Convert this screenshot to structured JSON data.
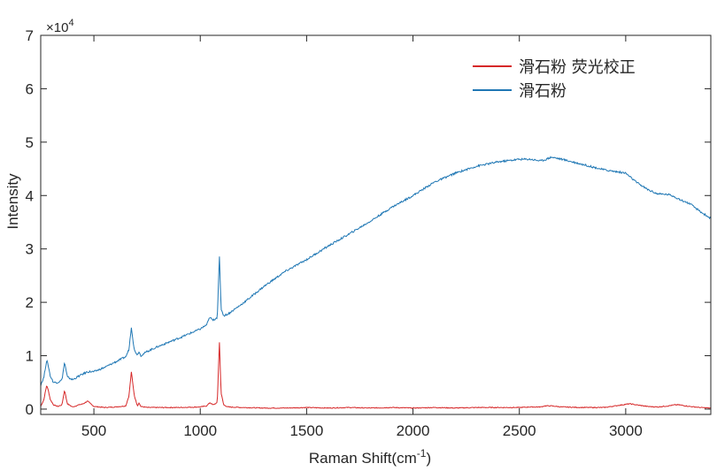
{
  "chart_data": {
    "type": "line",
    "title": "",
    "xlabel": "Raman Shift(cm",
    "xlabel_sup": "-1",
    "xlabel_suffix": ")",
    "ylabel": "Intensity",
    "y_multiplier": "×10",
    "y_multiplier_exp": "4",
    "xlim": [
      250,
      3400
    ],
    "ylim": [
      -0.1,
      7
    ],
    "x_ticks": [
      500,
      1000,
      1500,
      2000,
      2500,
      3000
    ],
    "x_tick_labels": [
      "500",
      "1000",
      "1500",
      "2000",
      "2500",
      "3000"
    ],
    "y_ticks": [
      0,
      1,
      2,
      3,
      4,
      5,
      6,
      7
    ],
    "y_tick_labels": [
      "0",
      "1",
      "2",
      "3",
      "4",
      "5",
      "6",
      "7"
    ],
    "grid": false,
    "legend_position": "top-right",
    "series": [
      {
        "name": "滑石粉 荧光校正",
        "color": "#d62728",
        "x": [
          250,
          265,
          278,
          285,
          295,
          310,
          330,
          350,
          362,
          375,
          400,
          430,
          450,
          470,
          500,
          550,
          600,
          650,
          665,
          676,
          690,
          705,
          712,
          720,
          750,
          800,
          900,
          1000,
          1030,
          1045,
          1060,
          1080,
          1090,
          1098,
          1110,
          1130,
          1200,
          1300,
          1400,
          1500,
          1600,
          1700,
          1800,
          1900,
          2000,
          2100,
          2200,
          2300,
          2400,
          2500,
          2550,
          2600,
          2620,
          2650,
          2700,
          2800,
          2900,
          3000,
          3020,
          3050,
          3100,
          3150,
          3200,
          3230,
          3250,
          3300,
          3350,
          3400
        ],
        "y": [
          0.05,
          0.18,
          0.45,
          0.36,
          0.18,
          0.08,
          0.05,
          0.08,
          0.36,
          0.1,
          0.04,
          0.08,
          0.1,
          0.15,
          0.05,
          0.03,
          0.04,
          0.06,
          0.25,
          0.7,
          0.25,
          0.06,
          0.12,
          0.05,
          0.03,
          0.03,
          0.03,
          0.04,
          0.06,
          0.12,
          0.08,
          0.12,
          1.25,
          0.3,
          0.08,
          0.04,
          0.03,
          0.02,
          0.02,
          0.03,
          0.02,
          0.03,
          0.02,
          0.03,
          0.02,
          0.03,
          0.02,
          0.03,
          0.03,
          0.03,
          0.04,
          0.04,
          0.06,
          0.06,
          0.04,
          0.03,
          0.03,
          0.09,
          0.1,
          0.08,
          0.05,
          0.04,
          0.06,
          0.08,
          0.08,
          0.05,
          0.03,
          0.02
        ]
      },
      {
        "name": "滑石粉",
        "color": "#1f77b4",
        "x": [
          250,
          265,
          278,
          285,
          295,
          310,
          330,
          350,
          362,
          375,
          400,
          430,
          450,
          470,
          500,
          550,
          600,
          650,
          665,
          676,
          690,
          705,
          712,
          720,
          750,
          800,
          900,
          1000,
          1030,
          1045,
          1060,
          1080,
          1090,
          1098,
          1110,
          1130,
          1200,
          1300,
          1400,
          1500,
          1600,
          1700,
          1800,
          1900,
          2000,
          2100,
          2200,
          2300,
          2400,
          2500,
          2550,
          2600,
          2620,
          2650,
          2700,
          2800,
          2900,
          3000,
          3020,
          3050,
          3100,
          3150,
          3200,
          3230,
          3250,
          3300,
          3350,
          3400
        ],
        "y": [
          0.45,
          0.6,
          0.92,
          0.82,
          0.62,
          0.5,
          0.5,
          0.55,
          0.88,
          0.6,
          0.55,
          0.62,
          0.66,
          0.7,
          0.7,
          0.78,
          0.88,
          0.98,
          1.12,
          1.54,
          1.1,
          1.02,
          1.08,
          1.0,
          1.08,
          1.17,
          1.33,
          1.5,
          1.58,
          1.72,
          1.66,
          1.72,
          2.84,
          1.88,
          1.75,
          1.78,
          1.98,
          2.3,
          2.58,
          2.8,
          3.05,
          3.28,
          3.52,
          3.78,
          4.0,
          4.25,
          4.42,
          4.55,
          4.63,
          4.68,
          4.68,
          4.65,
          4.67,
          4.72,
          4.68,
          4.58,
          4.48,
          4.42,
          4.35,
          4.25,
          4.12,
          4.03,
          4.02,
          3.98,
          3.93,
          3.85,
          3.7,
          3.57
        ]
      }
    ]
  }
}
